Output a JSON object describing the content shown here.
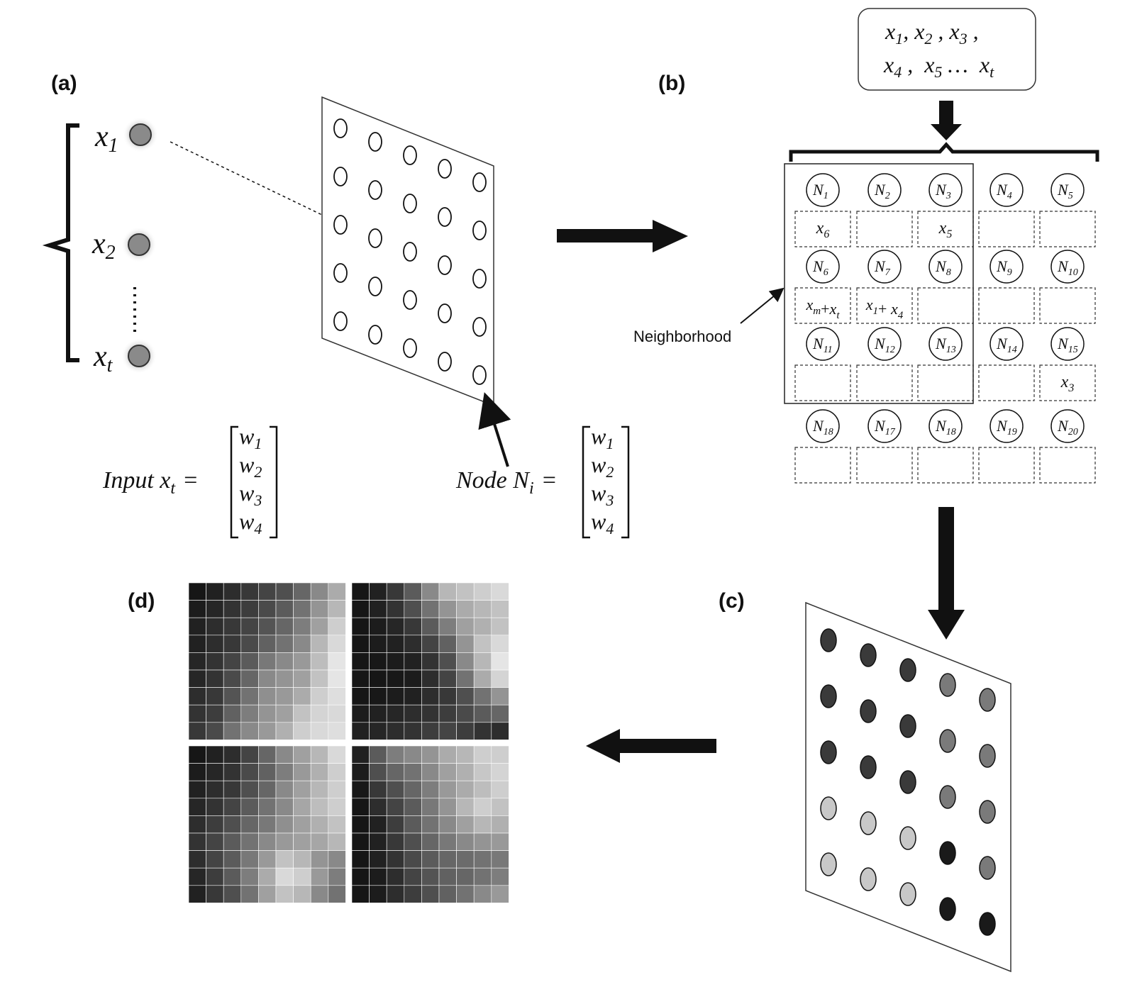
{
  "panels": {
    "a": {
      "label": "(a)",
      "inputs": [
        {
          "base": "x",
          "sub": "1"
        },
        {
          "base": "x",
          "sub": "2"
        },
        {
          "base": "x",
          "sub": "t"
        }
      ],
      "equation_input": {
        "text": "Input x",
        "sub": "t",
        "equals": "="
      },
      "equation_node": {
        "text": "Node N",
        "sub": "i",
        "equals": "="
      },
      "weights": [
        {
          "base": "w",
          "sub": "1"
        },
        {
          "base": "w",
          "sub": "2"
        },
        {
          "base": "w",
          "sub": "3"
        },
        {
          "base": "w",
          "sub": "4"
        }
      ]
    },
    "b": {
      "label": "(b)",
      "sequence_line1": [
        {
          "base": "x",
          "sub": "1",
          "sep": ","
        },
        {
          "base": "x",
          "sub": "2",
          "sep": " ,"
        },
        {
          "base": "x",
          "sub": "3",
          "sep": " ,"
        }
      ],
      "sequence_line2": [
        {
          "base": "x",
          "sub": "4",
          "sep": " ,"
        },
        {
          "base": "x",
          "sub": "5",
          "sep": " …"
        },
        {
          "base": "x",
          "sub": "t",
          "sep": ""
        }
      ],
      "neighborhood_label": "Neighborhood",
      "nodes": [
        "1",
        "2",
        "3",
        "4",
        "5",
        "6",
        "7",
        "8",
        "9",
        "10",
        "11",
        "12",
        "13",
        "14",
        "15",
        "18",
        "17",
        "18",
        "19",
        "20"
      ],
      "cells": [
        [
          {
            "parts": [
              {
                "base": "x",
                "sub": "6"
              }
            ]
          },
          {
            "parts": []
          },
          {
            "parts": [
              {
                "base": "x",
                "sub": "5"
              }
            ]
          },
          {
            "parts": []
          },
          {
            "parts": []
          }
        ],
        [
          {
            "parts": [
              {
                "base": "x",
                "sub": "m"
              },
              {
                "op": "+"
              },
              {
                "base": "x",
                "sub": "t"
              }
            ]
          },
          {
            "parts": [
              {
                "base": "x",
                "sub": "1"
              },
              {
                "op": "+ "
              },
              {
                "base": "x",
                "sub": "4"
              }
            ]
          },
          {
            "parts": []
          },
          {
            "parts": []
          },
          {
            "parts": []
          }
        ],
        [
          {
            "parts": []
          },
          {
            "parts": []
          },
          {
            "parts": []
          },
          {
            "parts": []
          },
          {
            "parts": [
              {
                "base": "x",
                "sub": "3"
              }
            ]
          }
        ],
        [
          {
            "parts": []
          },
          {
            "parts": []
          },
          {
            "parts": []
          },
          {
            "parts": []
          },
          {
            "parts": []
          }
        ]
      ]
    },
    "c": {
      "label": "(c)",
      "dot_shades": [
        [
          "#3a3a3a",
          "#3a3a3a",
          "#3a3a3a",
          "#7a7a7a",
          "#7a7a7a"
        ],
        [
          "#3a3a3a",
          "#3a3a3a",
          "#3a3a3a",
          "#7a7a7a",
          "#7a7a7a"
        ],
        [
          "#3a3a3a",
          "#3a3a3a",
          "#3a3a3a",
          "#7a7a7a",
          "#7a7a7a"
        ],
        [
          "#c8c8c8",
          "#c8c8c8",
          "#c8c8c8",
          "#1a1a1a",
          "#7a7a7a"
        ],
        [
          "#c8c8c8",
          "#c8c8c8",
          "#c8c8c8",
          "#1a1a1a",
          "#1a1a1a"
        ]
      ]
    },
    "d": {
      "label": "(d)",
      "heatmaps": [
        [
          [
            0.05,
            0.1,
            0.15,
            0.2,
            0.25,
            0.3,
            0.4,
            0.55,
            0.7
          ],
          [
            0.08,
            0.12,
            0.18,
            0.22,
            0.28,
            0.35,
            0.45,
            0.6,
            0.75
          ],
          [
            0.1,
            0.15,
            0.2,
            0.25,
            0.32,
            0.4,
            0.5,
            0.65,
            0.85
          ],
          [
            0.1,
            0.15,
            0.2,
            0.28,
            0.38,
            0.45,
            0.55,
            0.75,
            0.9
          ],
          [
            0.12,
            0.18,
            0.25,
            0.35,
            0.48,
            0.55,
            0.62,
            0.78,
            0.95
          ],
          [
            0.12,
            0.18,
            0.28,
            0.4,
            0.55,
            0.6,
            0.65,
            0.8,
            0.95
          ],
          [
            0.15,
            0.2,
            0.32,
            0.45,
            0.58,
            0.62,
            0.7,
            0.85,
            0.92
          ],
          [
            0.18,
            0.22,
            0.38,
            0.5,
            0.6,
            0.65,
            0.8,
            0.88,
            0.9
          ],
          [
            0.2,
            0.28,
            0.45,
            0.55,
            0.62,
            0.72,
            0.85,
            0.9,
            0.92
          ]
        ],
        [
          [
            0.05,
            0.1,
            0.2,
            0.35,
            0.55,
            0.75,
            0.8,
            0.85,
            0.9
          ],
          [
            0.05,
            0.1,
            0.18,
            0.3,
            0.45,
            0.6,
            0.7,
            0.75,
            0.8
          ],
          [
            0.05,
            0.08,
            0.12,
            0.2,
            0.35,
            0.5,
            0.65,
            0.72,
            0.8
          ],
          [
            0.05,
            0.08,
            0.1,
            0.15,
            0.25,
            0.38,
            0.6,
            0.8,
            0.9
          ],
          [
            0.05,
            0.06,
            0.08,
            0.1,
            0.18,
            0.3,
            0.55,
            0.75,
            0.95
          ],
          [
            0.05,
            0.05,
            0.06,
            0.08,
            0.15,
            0.25,
            0.45,
            0.7,
            0.88
          ],
          [
            0.05,
            0.06,
            0.08,
            0.1,
            0.15,
            0.2,
            0.3,
            0.45,
            0.6
          ],
          [
            0.08,
            0.1,
            0.12,
            0.15,
            0.18,
            0.22,
            0.28,
            0.35,
            0.4
          ],
          [
            0.1,
            0.12,
            0.15,
            0.18,
            0.22,
            0.25,
            0.22,
            0.18,
            0.15
          ]
        ],
        [
          [
            0.05,
            0.1,
            0.15,
            0.25,
            0.4,
            0.55,
            0.65,
            0.75,
            0.9
          ],
          [
            0.08,
            0.12,
            0.18,
            0.28,
            0.38,
            0.5,
            0.62,
            0.72,
            0.85
          ],
          [
            0.1,
            0.15,
            0.2,
            0.3,
            0.4,
            0.55,
            0.65,
            0.75,
            0.85
          ],
          [
            0.12,
            0.18,
            0.25,
            0.35,
            0.45,
            0.55,
            0.68,
            0.78,
            0.85
          ],
          [
            0.15,
            0.22,
            0.3,
            0.4,
            0.48,
            0.58,
            0.65,
            0.72,
            0.8
          ],
          [
            0.18,
            0.25,
            0.35,
            0.45,
            0.55,
            0.62,
            0.65,
            0.68,
            0.75
          ],
          [
            0.15,
            0.25,
            0.35,
            0.48,
            0.62,
            0.8,
            0.75,
            0.6,
            0.55
          ],
          [
            0.12,
            0.22,
            0.35,
            0.5,
            0.7,
            0.9,
            0.85,
            0.62,
            0.5
          ],
          [
            0.1,
            0.2,
            0.3,
            0.45,
            0.65,
            0.8,
            0.75,
            0.55,
            0.45
          ]
        ],
        [
          [
            0.1,
            0.35,
            0.5,
            0.55,
            0.6,
            0.7,
            0.75,
            0.85,
            0.85
          ],
          [
            0.08,
            0.3,
            0.4,
            0.45,
            0.55,
            0.65,
            0.72,
            0.82,
            0.88
          ],
          [
            0.06,
            0.2,
            0.3,
            0.4,
            0.5,
            0.62,
            0.7,
            0.78,
            0.85
          ],
          [
            0.05,
            0.15,
            0.25,
            0.35,
            0.48,
            0.6,
            0.75,
            0.85,
            0.8
          ],
          [
            0.05,
            0.1,
            0.22,
            0.35,
            0.45,
            0.55,
            0.65,
            0.75,
            0.72
          ],
          [
            0.05,
            0.1,
            0.2,
            0.3,
            0.4,
            0.48,
            0.55,
            0.6,
            0.62
          ],
          [
            0.05,
            0.1,
            0.18,
            0.28,
            0.35,
            0.4,
            0.42,
            0.45,
            0.48
          ],
          [
            0.05,
            0.08,
            0.15,
            0.25,
            0.32,
            0.38,
            0.4,
            0.45,
            0.5
          ],
          [
            0.05,
            0.08,
            0.15,
            0.22,
            0.3,
            0.38,
            0.45,
            0.55,
            0.62
          ]
        ]
      ]
    }
  }
}
